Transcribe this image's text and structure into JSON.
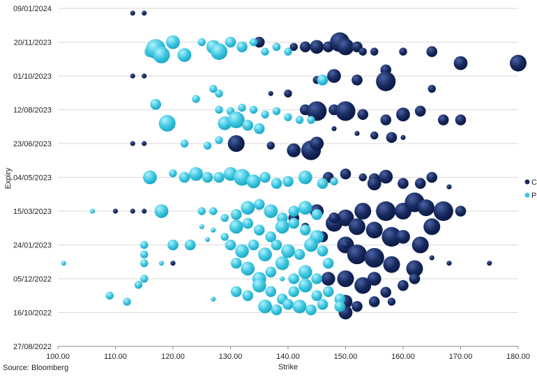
{
  "colors": {
    "C": "#17295e",
    "P": "#3ec6e0",
    "grid": "#d9d9d9",
    "axis": "#888888"
  },
  "source": "Source: Bloomberg",
  "chart_data": {
    "type": "scatter",
    "subtype": "bubble",
    "xlabel": "Strike",
    "ylabel": "Expiry",
    "xlim": [
      100,
      180
    ],
    "ylim": [
      "27/08/2022",
      "09/01/2024"
    ],
    "grid": "horizontal",
    "legend_position": "right",
    "x_ticks": [
      "100.00",
      "110.00",
      "120.00",
      "130.00",
      "140.00",
      "150.00",
      "160.00",
      "170.00",
      "180.00"
    ],
    "y_ticks": [
      "27/08/2022",
      "16/10/2022",
      "05/12/2022",
      "24/01/2023",
      "15/03/2023",
      "04/05/2023",
      "23/06/2023",
      "12/08/2023",
      "01/10/2023",
      "20/11/2023",
      "09/01/2024"
    ],
    "series": [
      {
        "name": "C",
        "points": [
          [
            113,
            "02/01/2024",
            1
          ],
          [
            115,
            "02/01/2024",
            1
          ],
          [
            113,
            "01/10/2023",
            1
          ],
          [
            115,
            "01/10/2023",
            1
          ],
          [
            113,
            "23/06/2023",
            1
          ],
          [
            115,
            "23/06/2023",
            1
          ],
          [
            113,
            "15/03/2023",
            1
          ],
          [
            115,
            "15/03/2023",
            1
          ],
          [
            135,
            "20/11/2023",
            3
          ],
          [
            138,
            "13/11/2023",
            2
          ],
          [
            141,
            "13/11/2023",
            2
          ],
          [
            143,
            "13/11/2023",
            3
          ],
          [
            145,
            "13/11/2023",
            4
          ],
          [
            147,
            "13/11/2023",
            3
          ],
          [
            149,
            "20/11/2023",
            6
          ],
          [
            150,
            "13/11/2023",
            5
          ],
          [
            152,
            "13/11/2023",
            3
          ],
          [
            153,
            "06/11/2023",
            2
          ],
          [
            155,
            "06/11/2023",
            2
          ],
          [
            160,
            "06/11/2023",
            2
          ],
          [
            165,
            "06/11/2023",
            3
          ],
          [
            170,
            "20/10/2023",
            4
          ],
          [
            180,
            "20/10/2023",
            5
          ],
          [
            157,
            "10/10/2023",
            3
          ],
          [
            145,
            "25/09/2023",
            2
          ],
          [
            148,
            "01/10/2023",
            4
          ],
          [
            152,
            "25/09/2023",
            3
          ],
          [
            157,
            "23/09/2023",
            6
          ],
          [
            165,
            "12/09/2023",
            2
          ],
          [
            140,
            "05/09/2023",
            2
          ],
          [
            143,
            "12/08/2023",
            3
          ],
          [
            145,
            "10/08/2023",
            6
          ],
          [
            148,
            "12/08/2023",
            3
          ],
          [
            150,
            "10/08/2023",
            6
          ],
          [
            153,
            "05/08/2023",
            3
          ],
          [
            157,
            "28/07/2023",
            3
          ],
          [
            160,
            "05/08/2023",
            4
          ],
          [
            163,
            "10/08/2023",
            3
          ],
          [
            167,
            "28/07/2023",
            3
          ],
          [
            170,
            "28/07/2023",
            3
          ],
          [
            148,
            "15/07/2023",
            1
          ],
          [
            152,
            "08/07/2023",
            1
          ],
          [
            155,
            "05/07/2023",
            2
          ],
          [
            158,
            "02/07/2023",
            3
          ],
          [
            160,
            "02/07/2023",
            1
          ],
          [
            131,
            "23/06/2023",
            5
          ],
          [
            137,
            "20/06/2023",
            2
          ],
          [
            141,
            "13/06/2023",
            4
          ],
          [
            144,
            "13/06/2023",
            6
          ],
          [
            145,
            "23/06/2023",
            4
          ],
          [
            147,
            "04/05/2023",
            3
          ],
          [
            150,
            "09/05/2023",
            3
          ],
          [
            153,
            "04/05/2023",
            2
          ],
          [
            155,
            "02/05/2023",
            3
          ],
          [
            157,
            "05/05/2023",
            4
          ],
          [
            160,
            "25/04/2023",
            3
          ],
          [
            163,
            "25/04/2023",
            3
          ],
          [
            165,
            "04/05/2023",
            3
          ],
          [
            168,
            "20/04/2023",
            1
          ],
          [
            155,
            "25/04/2023",
            4
          ],
          [
            157,
            "15/03/2023",
            6
          ],
          [
            160,
            "15/03/2023",
            5
          ],
          [
            162,
            "28/03/2023",
            6
          ],
          [
            164,
            "20/03/2023",
            5
          ],
          [
            167,
            "15/03/2023",
            6
          ],
          [
            170,
            "15/03/2023",
            3
          ],
          [
            153,
            "15/03/2023",
            5
          ],
          [
            150,
            "05/03/2023",
            5
          ],
          [
            148,
            "25/02/2023",
            5
          ],
          [
            152,
            "20/02/2023",
            5
          ],
          [
            155,
            "15/02/2023",
            5
          ],
          [
            158,
            "05/02/2023",
            6
          ],
          [
            160,
            "05/02/2023",
            4
          ],
          [
            163,
            "24/01/2023",
            5
          ],
          [
            165,
            "20/02/2023",
            5
          ],
          [
            150,
            "24/01/2023",
            5
          ],
          [
            152,
            "10/01/2023",
            6
          ],
          [
            155,
            "05/01/2023",
            6
          ],
          [
            158,
            "26/12/2022",
            5
          ],
          [
            162,
            "20/12/2022",
            5
          ],
          [
            147,
            "05/12/2022",
            4
          ],
          [
            150,
            "05/12/2022",
            5
          ],
          [
            153,
            "25/11/2022",
            5
          ],
          [
            155,
            "05/12/2022",
            4
          ],
          [
            157,
            "15/11/2022",
            3
          ],
          [
            160,
            "25/11/2022",
            3
          ],
          [
            162,
            "05/12/2022",
            3
          ],
          [
            150,
            "01/11/2022",
            4
          ],
          [
            152,
            "25/10/2022",
            3
          ],
          [
            155,
            "01/11/2022",
            3
          ],
          [
            158,
            "01/11/2022",
            2
          ],
          [
            150,
            "16/10/2022",
            4
          ],
          [
            141,
            "05/03/2023",
            3
          ],
          [
            143,
            "20/02/2023",
            2
          ],
          [
            145,
            "15/03/2023",
            4
          ],
          [
            146,
            "05/02/2023",
            3
          ],
          [
            148,
            "05/03/2023",
            3
          ],
          [
            150,
            "24/01/2023",
            2
          ],
          [
            165,
            "05/01/2023",
            1
          ],
          [
            168,
            "28/12/2022",
            1
          ],
          [
            175,
            "28/12/2022",
            1
          ],
          [
            120,
            "28/12/2022",
            1
          ],
          [
            110,
            "15/03/2023",
            1
          ],
          [
            137,
            "05/09/2023",
            1
          ]
        ]
      },
      {
        "name": "P",
        "points": [
          [
            101,
            "28/12/2022",
            1
          ],
          [
            106,
            "15/03/2023",
            1
          ],
          [
            109,
            "10/11/2022",
            2
          ],
          [
            112,
            "01/11/2022",
            2
          ],
          [
            115,
            "05/12/2022",
            2
          ],
          [
            115,
            "28/12/2022",
            2
          ],
          [
            115,
            "10/01/2023",
            2
          ],
          [
            115,
            "24/01/2023",
            2
          ],
          [
            114,
            "26/11/2022",
            2
          ],
          [
            120,
            "24/01/2023",
            3
          ],
          [
            123,
            "24/01/2023",
            3
          ],
          [
            118,
            "15/03/2023",
            4
          ],
          [
            116,
            "04/05/2023",
            4
          ],
          [
            117,
            "20/08/2023",
            3
          ],
          [
            119,
            "23/07/2023",
            5
          ],
          [
            116,
            "06/11/2023",
            3
          ],
          [
            117,
            "10/11/2023",
            6
          ],
          [
            118,
            "01/11/2023",
            5
          ],
          [
            120,
            "20/11/2023",
            4
          ],
          [
            122,
            "01/11/2023",
            4
          ],
          [
            125,
            "20/11/2023",
            2
          ],
          [
            127,
            "13/11/2023",
            4
          ],
          [
            128,
            "06/11/2023",
            5
          ],
          [
            130,
            "20/11/2023",
            3
          ],
          [
            132,
            "13/11/2023",
            3
          ],
          [
            134,
            "20/11/2023",
            2
          ],
          [
            136,
            "06/11/2023",
            2
          ],
          [
            138,
            "13/11/2023",
            2
          ],
          [
            140,
            "06/11/2023",
            2
          ],
          [
            146,
            "25/09/2023",
            3
          ],
          [
            127,
            "12/09/2023",
            2
          ],
          [
            128,
            "05/09/2023",
            2
          ],
          [
            128,
            "12/08/2023",
            2
          ],
          [
            124,
            "28/08/2023",
            2
          ],
          [
            130,
            "10/08/2023",
            2
          ],
          [
            132,
            "15/08/2023",
            2
          ],
          [
            134,
            "12/08/2023",
            2
          ],
          [
            136,
            "05/08/2023",
            2
          ],
          [
            138,
            "10/08/2023",
            2
          ],
          [
            140,
            "01/08/2023",
            2
          ],
          [
            142,
            "28/07/2023",
            2
          ],
          [
            144,
            "28/07/2023",
            2
          ],
          [
            129,
            "23/07/2023",
            4
          ],
          [
            131,
            "28/07/2023",
            5
          ],
          [
            133,
            "20/07/2023",
            3
          ],
          [
            135,
            "15/07/2023",
            3
          ],
          [
            122,
            "23/06/2023",
            2
          ],
          [
            126,
            "20/06/2023",
            2
          ],
          [
            128,
            "28/06/2023",
            2
          ],
          [
            120,
            "10/05/2023",
            2
          ],
          [
            122,
            "04/05/2023",
            3
          ],
          [
            124,
            "09/05/2023",
            4
          ],
          [
            126,
            "04/05/2023",
            3
          ],
          [
            128,
            "04/05/2023",
            3
          ],
          [
            130,
            "09/05/2023",
            4
          ],
          [
            132,
            "04/05/2023",
            5
          ],
          [
            134,
            "28/04/2023",
            4
          ],
          [
            136,
            "04/05/2023",
            3
          ],
          [
            138,
            "25/04/2023",
            3
          ],
          [
            140,
            "28/04/2023",
            3
          ],
          [
            143,
            "04/05/2023",
            4
          ],
          [
            146,
            "25/04/2023",
            3
          ],
          [
            148,
            "28/04/2023",
            2
          ],
          [
            125,
            "15/03/2023",
            2
          ],
          [
            127,
            "15/03/2023",
            2
          ],
          [
            129,
            "05/03/2023",
            2
          ],
          [
            131,
            "10/03/2023",
            3
          ],
          [
            133,
            "20/03/2023",
            4
          ],
          [
            135,
            "25/03/2023",
            3
          ],
          [
            137,
            "15/03/2023",
            4
          ],
          [
            139,
            "05/03/2023",
            3
          ],
          [
            141,
            "15/03/2023",
            3
          ],
          [
            143,
            "20/03/2023",
            4
          ],
          [
            145,
            "10/03/2023",
            3
          ],
          [
            125,
            "20/02/2023",
            1
          ],
          [
            127,
            "15/02/2023",
            1
          ],
          [
            129,
            "05/02/2023",
            2
          ],
          [
            131,
            "20/02/2023",
            4
          ],
          [
            133,
            "25/02/2023",
            3
          ],
          [
            135,
            "15/02/2023",
            3
          ],
          [
            137,
            "05/02/2023",
            3
          ],
          [
            139,
            "20/02/2023",
            4
          ],
          [
            141,
            "25/02/2023",
            3
          ],
          [
            143,
            "15/02/2023",
            3
          ],
          [
            145,
            "05/02/2023",
            4
          ],
          [
            130,
            "24/01/2023",
            3
          ],
          [
            132,
            "15/01/2023",
            4
          ],
          [
            134,
            "24/01/2023",
            3
          ],
          [
            136,
            "10/01/2023",
            4
          ],
          [
            138,
            "24/01/2023",
            3
          ],
          [
            140,
            "15/01/2023",
            4
          ],
          [
            142,
            "10/01/2023",
            3
          ],
          [
            144,
            "24/01/2023",
            4
          ],
          [
            146,
            "15/01/2023",
            3
          ],
          [
            131,
            "28/12/2022",
            3
          ],
          [
            133,
            "20/12/2022",
            4
          ],
          [
            135,
            "05/12/2022",
            4
          ],
          [
            137,
            "15/12/2022",
            3
          ],
          [
            139,
            "28/12/2022",
            4
          ],
          [
            141,
            "05/12/2022",
            3
          ],
          [
            143,
            "15/12/2022",
            4
          ],
          [
            145,
            "05/12/2022",
            3
          ],
          [
            147,
            "28/12/2022",
            3
          ],
          [
            131,
            "16/11/2022",
            3
          ],
          [
            133,
            "10/11/2022",
            3
          ],
          [
            135,
            "25/11/2022",
            4
          ],
          [
            137,
            "16/11/2022",
            3
          ],
          [
            139,
            "05/11/2022",
            3
          ],
          [
            141,
            "16/11/2022",
            3
          ],
          [
            143,
            "25/11/2022",
            4
          ],
          [
            145,
            "10/11/2022",
            3
          ],
          [
            147,
            "16/11/2022",
            3
          ],
          [
            149,
            "05/11/2022",
            3
          ],
          [
            136,
            "25/10/2022",
            4
          ],
          [
            138,
            "20/10/2022",
            3
          ],
          [
            140,
            "28/10/2022",
            3
          ],
          [
            142,
            "25/10/2022",
            4
          ],
          [
            144,
            "20/10/2022",
            3
          ],
          [
            146,
            "28/10/2022",
            3
          ],
          [
            149,
            "25/10/2022",
            3
          ],
          [
            118,
            "28/12/2022",
            1
          ],
          [
            127,
            "05/11/2022",
            1
          ],
          [
            126,
            "01/02/2023",
            1
          ],
          [
            139,
            "05/12/2022",
            1
          ]
        ]
      }
    ]
  }
}
